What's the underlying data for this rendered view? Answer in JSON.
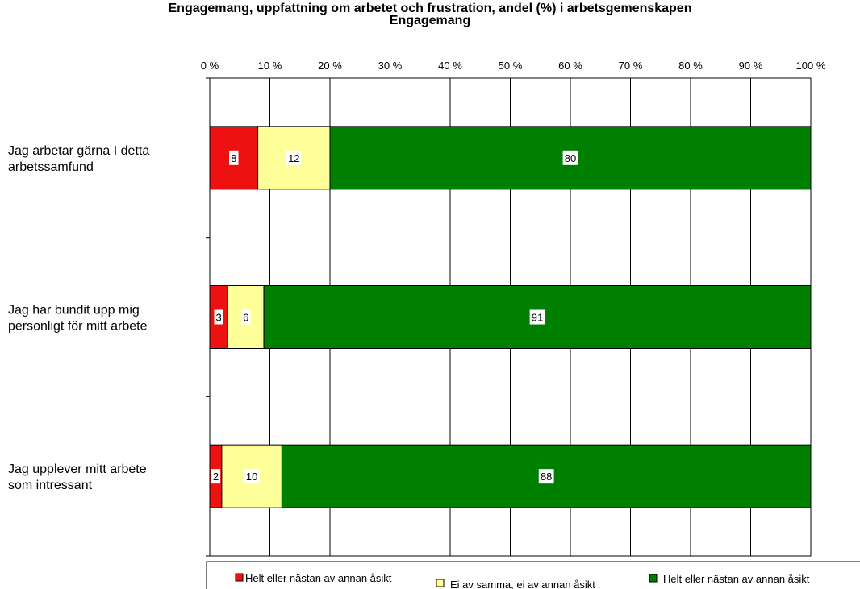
{
  "page": {
    "cut_header": "Engagemang, uppfattning om arbetet och frustration, andel (%) i arbetsgemenskapen"
  },
  "chart_data": {
    "type": "bar",
    "orientation": "horizontal",
    "stacked": "percent",
    "title": "Engagemang",
    "xlabel": "",
    "ylabel": "",
    "xlim": [
      0,
      100
    ],
    "x_ticks": [
      "0 %",
      "10 %",
      "20 %",
      "30 %",
      "40 %",
      "50 %",
      "60 %",
      "70 %",
      "80 %",
      "90 %",
      "100 %"
    ],
    "grid": true,
    "legend_position": "bottom",
    "categories": [
      [
        "Jag arbetar gärna I detta",
        "arbetssamfund"
      ],
      [
        "Jag har bundit upp mig",
        "personligt för mitt arbete"
      ],
      [
        "Jag upplever mitt arbete",
        "som intressant"
      ]
    ],
    "series": [
      {
        "name": "Helt eller nästan av annan åsikt",
        "color": "#ee1111",
        "values": [
          8,
          3,
          2
        ]
      },
      {
        "name": "Ei av samma, ei av annan åsikt",
        "color": "#ffff99",
        "values": [
          12,
          6,
          10
        ]
      },
      {
        "name": "Helt eller nästan av annan åsikt",
        "color": "#008000",
        "values": [
          80,
          91,
          88
        ]
      }
    ]
  }
}
